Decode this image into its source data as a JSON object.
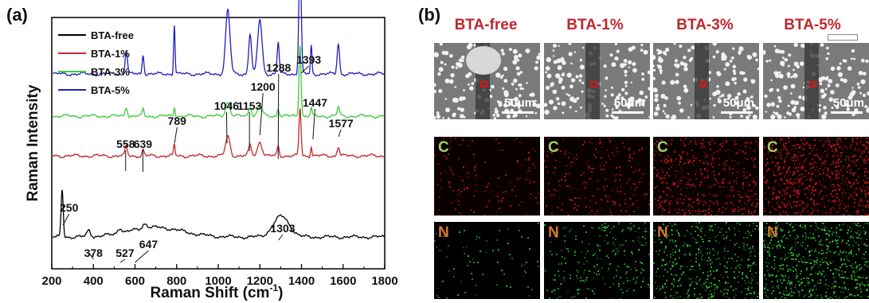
{
  "panels": {
    "a": "(a)",
    "b": "(b)"
  },
  "chart_data": {
    "type": "line",
    "xlabel": "Raman Shift (cm",
    "xlabel_sup": "-1",
    "xlabel_close": ")",
    "ylabel": "Raman Intensity",
    "xlim": [
      200,
      1800
    ],
    "xticks": [
      200,
      400,
      600,
      800,
      1000,
      1200,
      1400,
      1600,
      1800
    ],
    "yticks_shown": false,
    "legend_position": "top-left",
    "series": [
      {
        "name": "BTA-free",
        "color": "#000000",
        "baseline": 40,
        "peaks": [
          [
            250,
            60,
            7
          ],
          [
            378,
            8,
            12
          ],
          [
            527,
            7,
            14
          ],
          [
            647,
            6,
            16
          ],
          [
            1303,
            26,
            55
          ]
        ]
      },
      {
        "name": "BTA-1%",
        "color": "#c0282d",
        "baseline": 142,
        "peaks": [
          [
            558,
            12,
            8
          ],
          [
            639,
            8,
            6
          ],
          [
            789,
            14,
            5
          ],
          [
            1046,
            24,
            15
          ],
          [
            1153,
            13,
            10
          ],
          [
            1200,
            18,
            15
          ],
          [
            1288,
            12,
            7
          ],
          [
            1393,
            60,
            7
          ],
          [
            1447,
            12,
            5
          ],
          [
            1577,
            12,
            8
          ]
        ]
      },
      {
        "name": "BTA-3%",
        "color": "#3ec93e",
        "baseline": 192,
        "peaks": [
          [
            558,
            12,
            8
          ],
          [
            639,
            8,
            6
          ],
          [
            789,
            12,
            5
          ],
          [
            1046,
            18,
            15
          ],
          [
            1153,
            12,
            10
          ],
          [
            1200,
            14,
            15
          ],
          [
            1288,
            10,
            7
          ],
          [
            1393,
            90,
            7
          ],
          [
            1447,
            10,
            5
          ],
          [
            1577,
            11,
            8
          ]
        ]
      },
      {
        "name": "BTA-5%",
        "color": "#1f1fbf",
        "baseline": 245,
        "peaks": [
          [
            558,
            30,
            8
          ],
          [
            639,
            25,
            6
          ],
          [
            789,
            62,
            5
          ],
          [
            1046,
            80,
            15
          ],
          [
            1153,
            50,
            10
          ],
          [
            1200,
            68,
            15
          ],
          [
            1288,
            40,
            7
          ],
          [
            1393,
            150,
            8
          ],
          [
            1447,
            35,
            5
          ],
          [
            1577,
            38,
            8
          ]
        ]
      }
    ],
    "annotations": [
      {
        "text": "250"
      },
      {
        "text": "378"
      },
      {
        "text": "527"
      },
      {
        "text": "647"
      },
      {
        "text": "1303"
      },
      {
        "text": "558"
      },
      {
        "text": "639"
      },
      {
        "text": "789"
      },
      {
        "text": "1046"
      },
      {
        "text": "1153"
      },
      {
        "text": "1200"
      },
      {
        "text": "1288"
      },
      {
        "text": "1393"
      },
      {
        "text": "1447"
      },
      {
        "text": "1577"
      }
    ]
  },
  "micrographs": {
    "columns": [
      "BTA-free",
      "BTA-1%",
      "BTA-3%",
      "BTA-5%"
    ],
    "row_labels": [
      "C",
      "N"
    ],
    "scale_bar": "50μm",
    "c_intensity": [
      0.08,
      0.18,
      0.45,
      0.75
    ],
    "n_intensity": [
      0.02,
      0.2,
      0.45,
      0.7
    ],
    "highlight_color": "#c0262d"
  }
}
